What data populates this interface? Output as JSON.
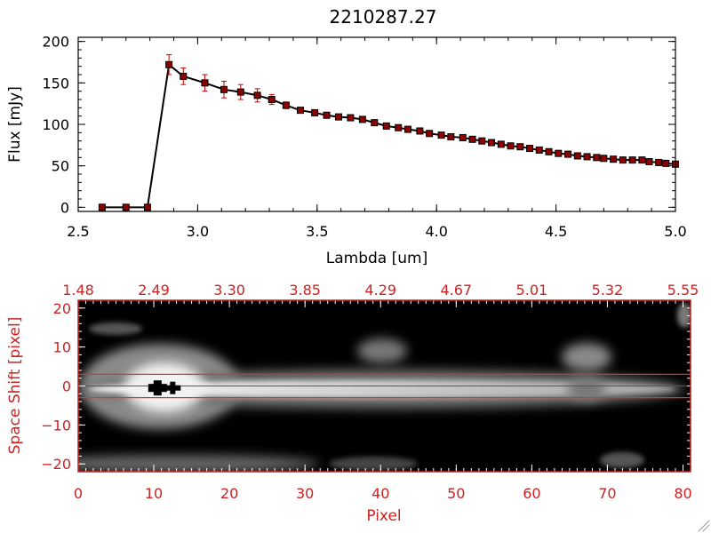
{
  "chart_data": [
    {
      "type": "line",
      "title": "2210287.27",
      "xlabel": "Lambda [um]",
      "ylabel": "Flux [mJy]",
      "xlim": [
        2.5,
        5.0
      ],
      "ylim": [
        -5,
        205
      ],
      "xticks": [
        {
          "v": 2.5,
          "label": "2.5"
        },
        {
          "v": 3.0,
          "label": "3.0"
        },
        {
          "v": 3.5,
          "label": "3.5"
        },
        {
          "v": 4.0,
          "label": "4.0"
        },
        {
          "v": 4.5,
          "label": "4.5"
        },
        {
          "v": 5.0,
          "label": "5.0"
        }
      ],
      "yticks": [
        {
          "v": 0,
          "label": "0"
        },
        {
          "v": 50,
          "label": "50"
        },
        {
          "v": 100,
          "label": "100"
        },
        {
          "v": 150,
          "label": "150"
        },
        {
          "v": 200,
          "label": "200"
        }
      ],
      "x": [
        2.6,
        2.7,
        2.79,
        2.88,
        2.94,
        3.03,
        3.11,
        3.18,
        3.25,
        3.31,
        3.37,
        3.43,
        3.49,
        3.54,
        3.59,
        3.64,
        3.69,
        3.74,
        3.79,
        3.84,
        3.88,
        3.93,
        3.97,
        4.02,
        4.06,
        4.11,
        4.15,
        4.19,
        4.23,
        4.27,
        4.31,
        4.35,
        4.39,
        4.43,
        4.47,
        4.51,
        4.55,
        4.59,
        4.63,
        4.67,
        4.7,
        4.74,
        4.78,
        4.82,
        4.86,
        4.89,
        4.93,
        4.96,
        5.0
      ],
      "y": [
        0,
        0,
        0,
        172,
        158,
        150,
        142,
        139,
        135,
        130,
        123,
        117,
        114,
        111,
        109,
        108,
        106,
        102,
        98,
        96,
        94,
        92,
        89,
        87,
        85,
        84,
        82,
        80,
        78,
        76,
        74,
        73,
        71,
        69,
        67,
        65,
        64,
        62,
        61,
        60,
        59,
        58,
        57,
        57,
        57,
        55,
        54,
        53,
        52
      ],
      "yerr": [
        0,
        0,
        0,
        12,
        10,
        10,
        10,
        9,
        8,
        6,
        4,
        3,
        3,
        2,
        2,
        2,
        2,
        2,
        2,
        2,
        2,
        2,
        2,
        2,
        2,
        2,
        2,
        2,
        2,
        2,
        2,
        2,
        2,
        2,
        2,
        2,
        2,
        2,
        2,
        2,
        2,
        2,
        2,
        2,
        2,
        2,
        2,
        2,
        2
      ],
      "colors": {
        "line": "#000000",
        "marker": "#8b0000",
        "error": "#cc0000"
      }
    },
    {
      "type": "heatmap",
      "xlabel": "Pixel",
      "ylabel": "Space Shift [pixel]",
      "xlim": [
        0,
        81
      ],
      "ylim": [
        -22,
        22
      ],
      "xticks": [
        {
          "v": 0,
          "label": "0"
        },
        {
          "v": 10,
          "label": "10"
        },
        {
          "v": 20,
          "label": "20"
        },
        {
          "v": 30,
          "label": "30"
        },
        {
          "v": 40,
          "label": "40"
        },
        {
          "v": 50,
          "label": "50"
        },
        {
          "v": 60,
          "label": "60"
        },
        {
          "v": 70,
          "label": "70"
        },
        {
          "v": 80,
          "label": "80"
        }
      ],
      "yticks": [
        {
          "v": -20,
          "label": "−20"
        },
        {
          "v": -10,
          "label": "−10"
        },
        {
          "v": 0,
          "label": "0"
        },
        {
          "v": 10,
          "label": "10"
        },
        {
          "v": 20,
          "label": "20"
        }
      ],
      "top_axis_labels": [
        {
          "v": 0,
          "label": "1.48"
        },
        {
          "v": 10,
          "label": "2.49"
        },
        {
          "v": 20,
          "label": "3.30"
        },
        {
          "v": 30,
          "label": "3.85"
        },
        {
          "v": 40,
          "label": "4.29"
        },
        {
          "v": 50,
          "label": "4.67"
        },
        {
          "v": 60,
          "label": "5.01"
        },
        {
          "v": 70,
          "label": "5.32"
        },
        {
          "v": 80,
          "label": "5.55"
        }
      ],
      "aperture_lines": [
        3,
        -3
      ],
      "center_line": 0,
      "markers": [
        {
          "x": 10.5,
          "y": -0.5
        },
        {
          "x": 12.5,
          "y": -0.5
        }
      ],
      "colors": {
        "axis": "#cc2222",
        "frame": "#cc2222",
        "aperture": "#dd3333"
      }
    }
  ]
}
